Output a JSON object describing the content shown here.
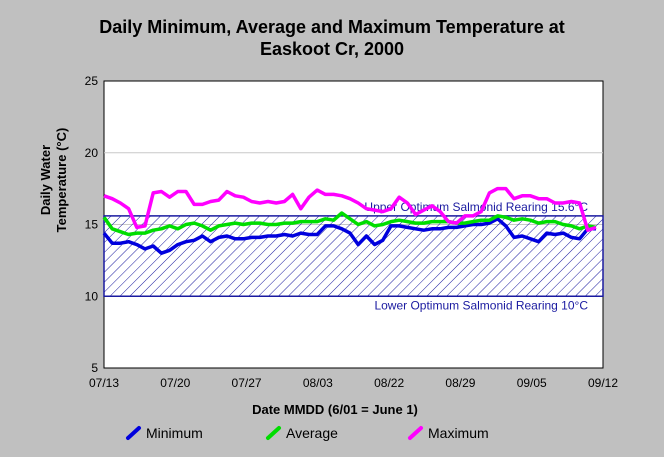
{
  "chart_data": {
    "type": "line",
    "title": [
      "Daily Minimum, Average and Maximum Temperature at",
      "Easkoot Cr, 2000"
    ],
    "ylabel": [
      "Daily Water",
      "Temperature (°C)"
    ],
    "xlabel": "Date MMDD (6/01 = June 1)",
    "ylim": [
      5,
      25
    ],
    "yticks": [
      5,
      10,
      15,
      20,
      25
    ],
    "xlim": [
      "07/13",
      "09/12"
    ],
    "xticks": [
      "07/13",
      "07/20",
      "07/27",
      "08/03",
      "08/22",
      "08/29",
      "09/05",
      "09/12"
    ],
    "optimum_band": {
      "upper": 15.6,
      "lower": 10,
      "upper_label": "Upper Optimum Salmonid Rearing 15.6°C",
      "lower_label": "Lower Optimum Salmonid Rearing 10°C"
    },
    "series": [
      {
        "name": "Minimum",
        "color": "#0000dd",
        "values": [
          14.4,
          13.7,
          13.7,
          13.8,
          13.6,
          13.3,
          13.5,
          13.0,
          13.2,
          13.6,
          13.8,
          13.9,
          14.2,
          13.8,
          14.1,
          14.2,
          14.0,
          14.0,
          14.1,
          14.1,
          14.2,
          14.2,
          14.3,
          14.2,
          14.4,
          14.3,
          14.3,
          14.9,
          14.9,
          14.7,
          14.4,
          13.6,
          14.2,
          13.6,
          13.9,
          14.9,
          14.9,
          14.8,
          14.7,
          14.6,
          14.7,
          14.7,
          14.8,
          14.8,
          14.9,
          15.0,
          15.0,
          15.1,
          15.4,
          14.9,
          14.1,
          14.2,
          14.0,
          13.8,
          14.4,
          14.3,
          14.4,
          14.1,
          14.0,
          14.7,
          14.7
        ]
      },
      {
        "name": "Average",
        "color": "#00dd00",
        "values": [
          15.5,
          14.7,
          14.5,
          14.3,
          14.4,
          14.4,
          14.6,
          14.7,
          14.9,
          14.7,
          15.0,
          15.1,
          14.9,
          14.6,
          14.9,
          15.0,
          15.1,
          15.0,
          15.1,
          15.1,
          15.0,
          15.0,
          15.1,
          15.1,
          15.2,
          15.2,
          15.2,
          15.4,
          15.3,
          15.8,
          15.4,
          15.0,
          15.2,
          14.9,
          15.0,
          15.2,
          15.3,
          15.2,
          15.1,
          15.1,
          15.2,
          15.2,
          15.2,
          15.1,
          15.1,
          15.2,
          15.3,
          15.3,
          15.6,
          15.5,
          15.3,
          15.4,
          15.3,
          15.1,
          15.2,
          15.2,
          15.0,
          14.9,
          14.7,
          14.9,
          14.8
        ]
      },
      {
        "name": "Maximum",
        "color": "#ff00ff",
        "values": [
          17.0,
          16.8,
          16.5,
          16.1,
          14.8,
          14.9,
          17.2,
          17.3,
          16.9,
          17.3,
          17.3,
          16.4,
          16.4,
          16.6,
          16.7,
          17.3,
          17.0,
          16.9,
          16.6,
          16.5,
          16.6,
          16.5,
          16.6,
          17.1,
          16.1,
          16.9,
          17.4,
          17.1,
          17.1,
          17.0,
          16.8,
          16.5,
          16.1,
          16.0,
          15.9,
          16.1,
          16.9,
          16.5,
          15.7,
          16.0,
          16.3,
          15.9,
          15.2,
          15.1,
          15.6,
          15.6,
          15.9,
          17.2,
          17.5,
          17.5,
          16.8,
          17.0,
          17.0,
          16.8,
          16.8,
          16.5,
          16.5,
          16.6,
          16.5,
          14.6,
          14.8
        ]
      }
    ],
    "legend_position": "bottom"
  }
}
